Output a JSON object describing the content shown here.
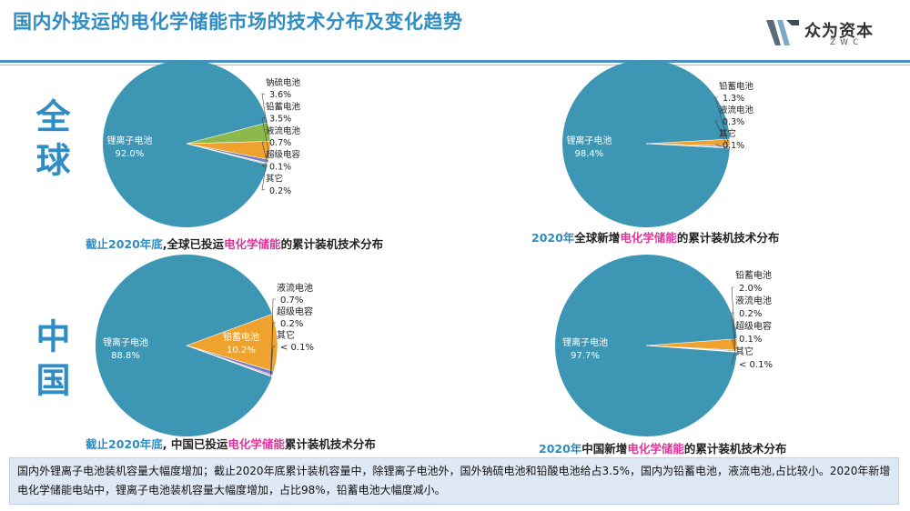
{
  "title": "国内外投运的电化学储能市场的技术分布及变化趋势",
  "logo": {
    "name": "众为资本",
    "sub": "ZWC"
  },
  "regions": {
    "global": "全球",
    "china": "中国"
  },
  "captions": [
    {
      "pre": "截止2020年底",
      "mid": ",全球已投运",
      "hl": "电化学储能",
      "post": "的累计装机技术分布"
    },
    {
      "pre": "2020年",
      "mid": "全球新增",
      "hl": "电化学储能",
      "post": "的累计装机技术分布"
    },
    {
      "pre": "截止2020年底",
      "mid": ", 中国已投运",
      "hl": "电化学储能",
      "post": "累计装机技术分布"
    },
    {
      "pre": "2020年",
      "mid": "中国新增",
      "hl": "电化学储能",
      "post": "的累计装机技术分布"
    }
  ],
  "footer": "国内外锂离子电池装机容量大幅度增加；截止2020年底累计装机容量中，除锂离子电池外，国外钠硫电池和铅酸电池给占3.5%，国内为铅蓄电池，液流电池,占比较小。2020年新增电化学储能电站中，锂离子电池装机容量大幅度增加，占比98%，铅蓄电池大幅度减小。",
  "colors": {
    "lithium": "#3e96b5",
    "sodium_sulfur": "#8db84a",
    "lead": "#f0a22e",
    "flow": "#7a7fc4",
    "supercap": "#d94d6a",
    "other": "#9a9a9a"
  },
  "chart_data": [
    {
      "type": "pie",
      "title": "截止2020年底,全球已投运电化学储能的累计装机技术分布",
      "series": [
        {
          "name": "锂离子电池",
          "label": "92.0%",
          "value": 92.0
        },
        {
          "name": "钠硫电池",
          "label": "3.6%",
          "value": 3.6
        },
        {
          "name": "铅蓄电池",
          "label": "3.5%",
          "value": 3.5
        },
        {
          "name": "液流电池",
          "label": "0.7%",
          "value": 0.7
        },
        {
          "name": "超级电容",
          "label": "0.1%",
          "value": 0.1
        },
        {
          "name": "其它",
          "label": "0.2%",
          "value": 0.2
        }
      ]
    },
    {
      "type": "pie",
      "title": "2020年全球新增电化学储能的累计装机技术分布",
      "series": [
        {
          "name": "锂离子电池",
          "label": "98.4%",
          "value": 98.4
        },
        {
          "name": "铅蓄电池",
          "label": "1.3%",
          "value": 1.3
        },
        {
          "name": "液流电池",
          "label": "0.3%",
          "value": 0.3
        },
        {
          "name": "其它",
          "label": "0.1%",
          "value": 0.1
        }
      ]
    },
    {
      "type": "pie",
      "title": "截止2020年底, 中国已投运电化学储能累计装机技术分布",
      "series": [
        {
          "name": "锂离子电池",
          "label": "88.8%",
          "value": 88.8
        },
        {
          "name": "铅蓄电池",
          "label": "10.2%",
          "value": 10.2
        },
        {
          "name": "液流电池",
          "label": "0.7%",
          "value": 0.7
        },
        {
          "name": "超级电容",
          "label": "0.2%",
          "value": 0.2
        },
        {
          "name": "其它",
          "label": "< 0.1%",
          "value": 0.1
        }
      ]
    },
    {
      "type": "pie",
      "title": "2020年中国新增电化学储能的累计装机技术分布",
      "series": [
        {
          "name": "锂离子电池",
          "label": "97.7%",
          "value": 97.7
        },
        {
          "name": "铅蓄电池",
          "label": "2.0%",
          "value": 2.0
        },
        {
          "name": "液流电池",
          "label": "0.2%",
          "value": 0.2
        },
        {
          "name": "超级电容",
          "label": "0.1%",
          "value": 0.1
        },
        {
          "name": "其它",
          "label": "< 0.1%",
          "value": 0.05
        }
      ]
    }
  ]
}
